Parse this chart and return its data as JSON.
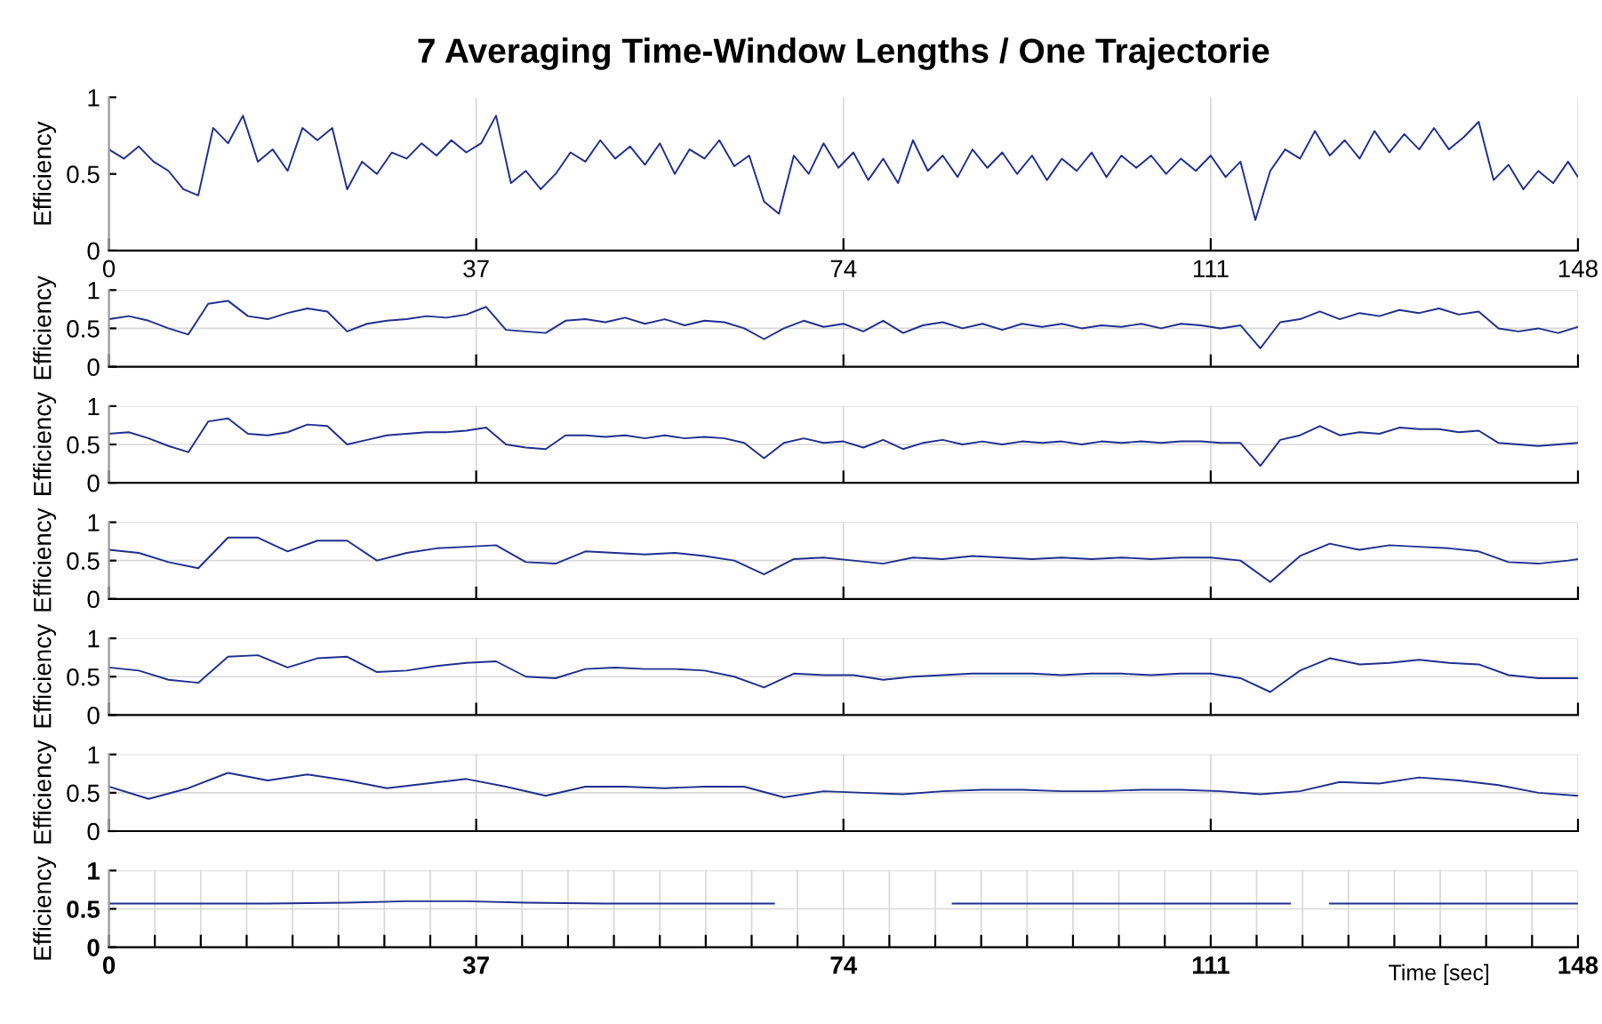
{
  "chart_data": [
    {
      "type": "line",
      "title": "7 Averaging Time-Window Lengths / One Trajectorie",
      "ylabel": "Efficiency",
      "xlim": [
        0,
        148
      ],
      "xticks": [
        0,
        37,
        74,
        111,
        148
      ],
      "ylim": [
        0,
        1
      ],
      "yticks": [
        0,
        0.5,
        1
      ],
      "grid": "x",
      "x": [
        0,
        1.5,
        3,
        4.5,
        6,
        7.5,
        9,
        10.5,
        12,
        13.5,
        15,
        16.5,
        18,
        19.5,
        21,
        22.5,
        24,
        25.5,
        27,
        28.5,
        30,
        31.5,
        33,
        34.5,
        36,
        37.5,
        39,
        40.5,
        42,
        43.5,
        45,
        46.5,
        48,
        49.5,
        51,
        52.5,
        54,
        55.5,
        57,
        58.5,
        60,
        61.5,
        63,
        64.5,
        66,
        67.5,
        69,
        70.5,
        72,
        73.5,
        75,
        76.5,
        78,
        79.5,
        81,
        82.5,
        84,
        85.5,
        87,
        88.5,
        90,
        91.5,
        93,
        94.5,
        96,
        97.5,
        99,
        100.5,
        102,
        103.5,
        105,
        106.5,
        108,
        109.5,
        111,
        112.5,
        114,
        115.5,
        117,
        118.5,
        120,
        121.5,
        123,
        124.5,
        126,
        127.5,
        129,
        130.5,
        132,
        133.5,
        135,
        136.5,
        138,
        139.5,
        141,
        142.5,
        144,
        145.5,
        147,
        148
      ],
      "series": [
        {
          "color": "#1f2f8f",
          "values": [
            0.66,
            0.6,
            0.68,
            0.58,
            0.52,
            0.4,
            0.36,
            0.8,
            0.7,
            0.88,
            0.58,
            0.66,
            0.52,
            0.8,
            0.72,
            0.8,
            0.4,
            0.58,
            0.5,
            0.64,
            0.6,
            0.7,
            0.62,
            0.72,
            0.64,
            0.7,
            0.88,
            0.44,
            0.52,
            0.4,
            0.5,
            0.64,
            0.58,
            0.72,
            0.6,
            0.68,
            0.56,
            0.7,
            0.5,
            0.66,
            0.6,
            0.72,
            0.55,
            0.62,
            0.32,
            0.24,
            0.62,
            0.5,
            0.7,
            0.54,
            0.64,
            0.46,
            0.6,
            0.44,
            0.72,
            0.52,
            0.62,
            0.48,
            0.66,
            0.54,
            0.64,
            0.5,
            0.62,
            0.46,
            0.6,
            0.52,
            0.64,
            0.48,
            0.62,
            0.54,
            0.62,
            0.5,
            0.6,
            0.52,
            0.62,
            0.48,
            0.58,
            0.2,
            0.52,
            0.66,
            0.6,
            0.78,
            0.62,
            0.72,
            0.6,
            0.78,
            0.64,
            0.76,
            0.66,
            0.8,
            0.66,
            0.74,
            0.84,
            0.46,
            0.56,
            0.4,
            0.52,
            0.44,
            0.58,
            0.48
          ]
        }
      ]
    },
    {
      "type": "line",
      "ylabel": "Efficiency",
      "xlim": [
        0,
        148
      ],
      "xticks": [
        0,
        37,
        74,
        111,
        148
      ],
      "ylim": [
        0,
        1
      ],
      "yticks": [
        0,
        0.5,
        1
      ],
      "grid": true,
      "tick_labels": "y",
      "x": [
        0,
        2,
        4,
        6,
        8,
        10,
        12,
        14,
        16,
        18,
        20,
        22,
        24,
        26,
        28,
        30,
        32,
        34,
        36,
        38,
        40,
        42,
        44,
        46,
        48,
        50,
        52,
        54,
        56,
        58,
        60,
        62,
        64,
        66,
        68,
        70,
        72,
        74,
        76,
        78,
        80,
        82,
        84,
        86,
        88,
        90,
        92,
        94,
        96,
        98,
        100,
        102,
        104,
        106,
        108,
        110,
        112,
        114,
        116,
        118,
        120,
        122,
        124,
        126,
        128,
        130,
        132,
        134,
        136,
        138,
        140,
        142,
        144,
        146,
        148
      ],
      "series": [
        {
          "color": "#1f2f8f",
          "values": [
            0.62,
            0.66,
            0.6,
            0.5,
            0.42,
            0.82,
            0.86,
            0.66,
            0.62,
            0.7,
            0.76,
            0.72,
            0.46,
            0.56,
            0.6,
            0.62,
            0.66,
            0.64,
            0.68,
            0.78,
            0.48,
            0.46,
            0.44,
            0.6,
            0.62,
            0.58,
            0.64,
            0.56,
            0.62,
            0.54,
            0.6,
            0.58,
            0.5,
            0.36,
            0.5,
            0.6,
            0.52,
            0.56,
            0.46,
            0.6,
            0.44,
            0.54,
            0.58,
            0.5,
            0.56,
            0.48,
            0.56,
            0.52,
            0.56,
            0.5,
            0.54,
            0.52,
            0.56,
            0.5,
            0.56,
            0.54,
            0.5,
            0.54,
            0.24,
            0.58,
            0.62,
            0.72,
            0.62,
            0.7,
            0.66,
            0.74,
            0.7,
            0.76,
            0.68,
            0.72,
            0.5,
            0.46,
            0.5,
            0.44,
            0.52
          ]
        }
      ]
    },
    {
      "type": "line",
      "ylabel": "Efficiency",
      "xlim": [
        0,
        148
      ],
      "xticks": [
        0,
        37,
        74,
        111,
        148
      ],
      "ylim": [
        0,
        1
      ],
      "yticks": [
        0,
        0.5,
        1
      ],
      "grid": true,
      "tick_labels": "y",
      "x": [
        0,
        2,
        4,
        6,
        8,
        10,
        12,
        14,
        16,
        18,
        20,
        22,
        24,
        26,
        28,
        30,
        32,
        34,
        36,
        38,
        40,
        42,
        44,
        46,
        48,
        50,
        52,
        54,
        56,
        58,
        60,
        62,
        64,
        66,
        68,
        70,
        72,
        74,
        76,
        78,
        80,
        82,
        84,
        86,
        88,
        90,
        92,
        94,
        96,
        98,
        100,
        102,
        104,
        106,
        108,
        110,
        112,
        114,
        116,
        118,
        120,
        122,
        124,
        126,
        128,
        130,
        132,
        134,
        136,
        138,
        140,
        142,
        144,
        146,
        148
      ],
      "series": [
        {
          "color": "#1f2f8f",
          "values": [
            0.64,
            0.66,
            0.58,
            0.48,
            0.4,
            0.8,
            0.84,
            0.64,
            0.62,
            0.66,
            0.76,
            0.74,
            0.5,
            0.56,
            0.62,
            0.64,
            0.66,
            0.66,
            0.68,
            0.72,
            0.5,
            0.46,
            0.44,
            0.62,
            0.62,
            0.6,
            0.62,
            0.58,
            0.62,
            0.58,
            0.6,
            0.58,
            0.52,
            0.32,
            0.52,
            0.58,
            0.52,
            0.54,
            0.46,
            0.56,
            0.44,
            0.52,
            0.56,
            0.5,
            0.54,
            0.5,
            0.54,
            0.52,
            0.54,
            0.5,
            0.54,
            0.52,
            0.54,
            0.52,
            0.54,
            0.54,
            0.52,
            0.52,
            0.22,
            0.56,
            0.62,
            0.74,
            0.62,
            0.66,
            0.64,
            0.72,
            0.7,
            0.7,
            0.66,
            0.68,
            0.52,
            0.5,
            0.48,
            0.5,
            0.52
          ]
        }
      ]
    },
    {
      "type": "line",
      "ylabel": "Efficiency",
      "xlim": [
        0,
        148
      ],
      "xticks": [
        0,
        37,
        74,
        111,
        148
      ],
      "ylim": [
        0,
        1
      ],
      "yticks": [
        0,
        0.5,
        1
      ],
      "grid": true,
      "tick_labels": "y",
      "x": [
        0,
        3,
        6,
        9,
        12,
        15,
        18,
        21,
        24,
        27,
        30,
        33,
        36,
        39,
        42,
        45,
        48,
        51,
        54,
        57,
        60,
        63,
        66,
        69,
        72,
        75,
        78,
        81,
        84,
        87,
        90,
        93,
        96,
        99,
        102,
        105,
        108,
        111,
        114,
        117,
        120,
        123,
        126,
        129,
        132,
        135,
        138,
        141,
        144,
        147,
        148
      ],
      "series": [
        {
          "color": "#1f2f8f",
          "values": [
            0.64,
            0.6,
            0.48,
            0.4,
            0.8,
            0.8,
            0.62,
            0.76,
            0.76,
            0.5,
            0.6,
            0.66,
            0.68,
            0.7,
            0.48,
            0.46,
            0.62,
            0.6,
            0.58,
            0.6,
            0.56,
            0.5,
            0.32,
            0.52,
            0.54,
            0.5,
            0.46,
            0.54,
            0.52,
            0.56,
            0.54,
            0.52,
            0.54,
            0.52,
            0.54,
            0.52,
            0.54,
            0.54,
            0.5,
            0.22,
            0.56,
            0.72,
            0.64,
            0.7,
            0.68,
            0.66,
            0.62,
            0.48,
            0.46,
            0.5,
            0.52
          ]
        }
      ]
    },
    {
      "type": "line",
      "ylabel": "Efficiency",
      "xlim": [
        0,
        148
      ],
      "xticks": [
        0,
        37,
        74,
        111,
        148
      ],
      "ylim": [
        0,
        1
      ],
      "yticks": [
        0,
        0.5,
        1
      ],
      "grid": true,
      "tick_labels": "y",
      "x": [
        0,
        3,
        6,
        9,
        12,
        15,
        18,
        21,
        24,
        27,
        30,
        33,
        36,
        39,
        42,
        45,
        48,
        51,
        54,
        57,
        60,
        63,
        66,
        69,
        72,
        75,
        78,
        81,
        84,
        87,
        90,
        93,
        96,
        99,
        102,
        105,
        108,
        111,
        114,
        117,
        120,
        123,
        126,
        129,
        132,
        135,
        138,
        141,
        144,
        147,
        148
      ],
      "series": [
        {
          "color": "#1f2f8f",
          "values": [
            0.62,
            0.58,
            0.46,
            0.42,
            0.76,
            0.78,
            0.62,
            0.74,
            0.76,
            0.56,
            0.58,
            0.64,
            0.68,
            0.7,
            0.5,
            0.48,
            0.6,
            0.62,
            0.6,
            0.6,
            0.58,
            0.5,
            0.36,
            0.54,
            0.52,
            0.52,
            0.46,
            0.5,
            0.52,
            0.54,
            0.54,
            0.54,
            0.52,
            0.54,
            0.54,
            0.52,
            0.54,
            0.54,
            0.48,
            0.3,
            0.58,
            0.74,
            0.66,
            0.68,
            0.72,
            0.68,
            0.66,
            0.52,
            0.48,
            0.48,
            0.48
          ]
        }
      ]
    },
    {
      "type": "line",
      "ylabel": "Efficiency",
      "xlim": [
        0,
        148
      ],
      "xticks": [
        0,
        37,
        74,
        111,
        148
      ],
      "ylim": [
        0,
        1
      ],
      "yticks": [
        0,
        0.5,
        1
      ],
      "grid": true,
      "tick_labels": "y",
      "x": [
        0,
        4,
        8,
        12,
        16,
        20,
        24,
        28,
        32,
        36,
        40,
        44,
        48,
        52,
        56,
        60,
        64,
        68,
        72,
        76,
        80,
        84,
        88,
        92,
        96,
        100,
        104,
        108,
        112,
        116,
        120,
        124,
        128,
        132,
        136,
        140,
        144,
        148
      ],
      "series": [
        {
          "color": "#1f2f8f",
          "values": [
            0.58,
            0.42,
            0.56,
            0.76,
            0.66,
            0.74,
            0.66,
            0.56,
            0.62,
            0.68,
            0.58,
            0.46,
            0.58,
            0.58,
            0.56,
            0.58,
            0.58,
            0.44,
            0.52,
            0.5,
            0.48,
            0.52,
            0.54,
            0.54,
            0.52,
            0.52,
            0.54,
            0.54,
            0.52,
            0.48,
            0.52,
            0.64,
            0.62,
            0.7,
            0.66,
            0.6,
            0.5,
            0.46
          ]
        }
      ]
    },
    {
      "type": "line",
      "ylabel": "Efficiency",
      "xlabel": "Time [sec]",
      "xlim": [
        0,
        148
      ],
      "xticks": [
        0,
        {
          "value": 4.625,
          "label": null
        },
        {
          "value": 9.25,
          "label": null
        },
        {
          "value": 13.875,
          "label": null
        },
        {
          "value": 18.5,
          "label": null
        },
        {
          "value": 23.125,
          "label": null
        },
        {
          "value": 27.75,
          "label": null
        },
        {
          "value": 32.375,
          "label": null
        },
        37,
        {
          "value": 41.625,
          "label": null
        },
        {
          "value": 46.25,
          "label": null
        },
        {
          "value": 50.875,
          "label": null
        },
        {
          "value": 55.5,
          "label": null
        },
        {
          "value": 60.125,
          "label": null
        },
        {
          "value": 64.75,
          "label": null
        },
        {
          "value": 69.375,
          "label": null
        },
        74,
        {
          "value": 78.625,
          "label": null
        },
        {
          "value": 83.25,
          "label": null
        },
        {
          "value": 87.875,
          "label": null
        },
        {
          "value": 92.5,
          "label": null
        },
        {
          "value": 97.125,
          "label": null
        },
        {
          "value": 101.75,
          "label": null
        },
        {
          "value": 106.375,
          "label": null
        },
        111,
        {
          "value": 115.625,
          "label": null
        },
        {
          "value": 120.25,
          "label": null
        },
        {
          "value": 124.875,
          "label": null
        },
        {
          "value": 129.5,
          "label": null
        },
        {
          "value": 134.125,
          "label": null
        },
        {
          "value": 138.75,
          "label": null
        },
        {
          "value": 143.375,
          "label": null
        },
        148
      ],
      "ylim": [
        0,
        1
      ],
      "yticks": [
        0,
        0.5,
        1
      ],
      "grid": true,
      "x": [
        0,
        8,
        16,
        24,
        30,
        36,
        42,
        50,
        58,
        67,
        68,
        76,
        85,
        92,
        100,
        108,
        116,
        119,
        121,
        123,
        130,
        138,
        148
      ],
      "series": [
        {
          "color": "#1f2f8f",
          "values": [
            0.57,
            0.57,
            0.57,
            0.58,
            0.6,
            0.6,
            0.58,
            0.57,
            0.57,
            0.57,
            null,
            null,
            0.57,
            0.57,
            0.57,
            0.57,
            0.57,
            0.57,
            null,
            0.57,
            0.57,
            0.57,
            0.57
          ]
        }
      ]
    }
  ]
}
